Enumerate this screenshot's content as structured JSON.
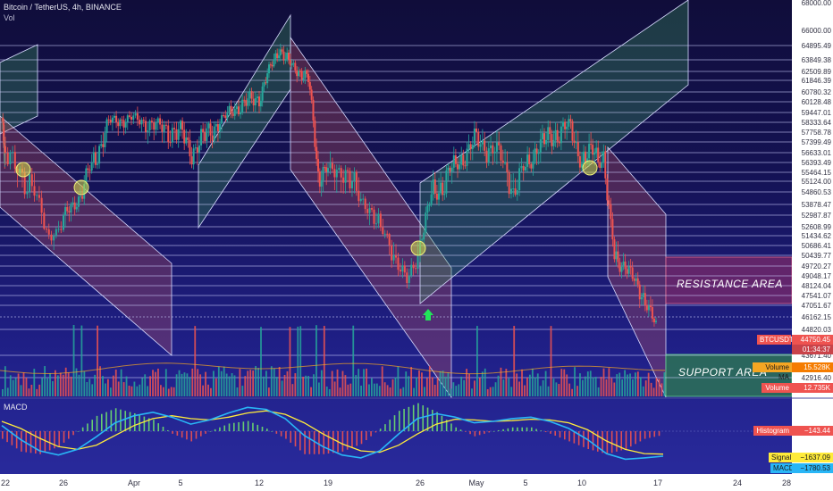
{
  "header": {
    "title": "Bitcoin / TetherUS, 4h, BINANCE",
    "vol_label": "Vol",
    "watermark_text": "Bitcoin / TetherUS"
  },
  "annotations": {
    "resistance_label": "RESISTANCE AREA",
    "support_label": "SUPPORT AREA"
  },
  "price_axis": {
    "labels": [
      "68000.00",
      "66000.00",
      "64895.49",
      "63849.38",
      "62509.89",
      "61846.39",
      "60780.32",
      "60128.48",
      "59447.01",
      "58333.64",
      "57758.78",
      "57399.49",
      "56633.01",
      "56393.49",
      "55464.15",
      "55124.00",
      "54860.53",
      "53878.47",
      "52987.87",
      "52608.99",
      "51434.62",
      "50686.41",
      "50439.77",
      "49720.27",
      "49048.17",
      "48124.04",
      "47541.07",
      "47051.67",
      "46162.15",
      "44820.03",
      "43671.40",
      "42916.40"
    ]
  },
  "tags": {
    "btc": {
      "name": "BTCUSDT",
      "value": "44750.45",
      "countdown": "01:34:37"
    },
    "volume_ma": {
      "name": "Volume MA",
      "value": "15.528K"
    },
    "volume": {
      "name": "Volume",
      "value": "12.735K"
    },
    "histogram": {
      "name": "Histogram",
      "value": "−143.44"
    },
    "signal": {
      "name": "Signal",
      "value": "−1637.09"
    },
    "macd": {
      "name": "MACD",
      "value": "−1780.53"
    }
  },
  "macd_panel": {
    "title": "MACD"
  },
  "time_axis": {
    "labels": [
      "22",
      "26",
      "Apr",
      "5",
      "12",
      "19",
      "26",
      "May",
      "5",
      "10",
      "17",
      "24",
      "28"
    ]
  },
  "colors": {
    "up": "#26a69a",
    "down": "#ef5350",
    "macd_line": "#29b6f6",
    "signal_line": "#ffeb3b",
    "channel_up_fill": "#3f9c5a",
    "channel_down_fill": "#c2545e",
    "resistance_fill": "#7b2a6a",
    "support_fill": "#2e7d4f",
    "level_line": "#cfd2ff"
  },
  "chart_data": {
    "type": "candlestick",
    "symbol": "BTCUSDT",
    "timeframe": "4h",
    "exchange": "BINANCE",
    "price_range": [
      42000,
      68500
    ],
    "x_ticks": [
      "22",
      "26",
      "Apr",
      "5",
      "12",
      "19",
      "26",
      "May",
      "5",
      "10",
      "17",
      "24",
      "28"
    ],
    "close_path": [
      {
        "t": "Mar 20",
        "price": 58300
      },
      {
        "t": "Mar 22",
        "price": 56500
      },
      {
        "t": "Mar 24",
        "price": 54800
      },
      {
        "t": "Mar 25",
        "price": 51500
      },
      {
        "t": "Mar 27",
        "price": 54000
      },
      {
        "t": "Mar 28",
        "price": 55200
      },
      {
        "t": "Mar 30",
        "price": 58400
      },
      {
        "t": "Apr 1",
        "price": 58800
      },
      {
        "t": "Apr 3",
        "price": 58100
      },
      {
        "t": "Apr 5",
        "price": 57800
      },
      {
        "t": "Apr 6",
        "price": 56800
      },
      {
        "t": "Apr 8",
        "price": 58100
      },
      {
        "t": "Apr 10",
        "price": 59800
      },
      {
        "t": "Apr 12",
        "price": 60400
      },
      {
        "t": "Apr 13",
        "price": 62600
      },
      {
        "t": "Apr 14",
        "price": 64800
      },
      {
        "t": "Apr 15",
        "price": 63500
      },
      {
        "t": "Apr 17",
        "price": 61800
      },
      {
        "t": "Apr 18",
        "price": 55500
      },
      {
        "t": "Apr 20",
        "price": 55800
      },
      {
        "t": "Apr 22",
        "price": 53800
      },
      {
        "t": "Apr 24",
        "price": 50500
      },
      {
        "t": "Apr 25",
        "price": 48500
      },
      {
        "t": "Apr 26",
        "price": 51000
      },
      {
        "t": "Apr 27",
        "price": 54500
      },
      {
        "t": "Apr 28",
        "price": 55100
      },
      {
        "t": "Apr 30",
        "price": 56700
      },
      {
        "t": "May 1",
        "price": 57400
      },
      {
        "t": "May 3",
        "price": 56600
      },
      {
        "t": "May 4",
        "price": 54800
      },
      {
        "t": "May 6",
        "price": 57000
      },
      {
        "t": "May 8",
        "price": 57900
      },
      {
        "t": "May 9",
        "price": 58100
      },
      {
        "t": "May 10",
        "price": 56300
      },
      {
        "t": "May 11",
        "price": 56800
      },
      {
        "t": "May 12",
        "price": 56500
      },
      {
        "t": "May 13",
        "price": 50200
      },
      {
        "t": "May 14",
        "price": 49800
      },
      {
        "t": "May 15",
        "price": 48300
      },
      {
        "t": "May 16",
        "price": 47200
      },
      {
        "t": "May 17",
        "price": 44750
      }
    ],
    "levels": [
      64895.49,
      63849.38,
      62509.89,
      61846.39,
      60780.32,
      60128.48,
      59447.01,
      58333.64,
      57758.78,
      57399.49,
      56633.01,
      56393.49,
      55464.15,
      55124.0,
      54860.53,
      53878.47,
      52987.87,
      52608.99,
      51434.62,
      50686.41,
      50439.77,
      49720.27,
      49048.17,
      48124.04,
      47541.07,
      47051.67,
      46162.15,
      44820.03,
      43671.4,
      42916.4
    ],
    "last_price": 44750.45,
    "volume": {
      "last": "12.735K",
      "ma": "15.528K"
    },
    "macd": {
      "histogram": -143.44,
      "signal": -1637.09,
      "macd": -1780.53
    },
    "macd_series": {
      "macd": [
        400,
        -600,
        -1400,
        -1700,
        -1300,
        -400,
        600,
        1100,
        1350,
        1000,
        500,
        800,
        1300,
        1700,
        1550,
        900,
        -300,
        -1100,
        -1700,
        -1900,
        -1400,
        -200,
        900,
        1250,
        1000,
        600,
        700,
        900,
        1000,
        700,
        200,
        -600,
        -1600,
        -2000,
        -1900,
        -1780
      ],
      "signal": [
        700,
        200,
        -500,
        -1100,
        -1300,
        -1000,
        -300,
        400,
        900,
        1100,
        900,
        800,
        1000,
        1300,
        1450,
        1200,
        600,
        -200,
        -900,
        -1400,
        -1500,
        -1000,
        -200,
        500,
        850,
        800,
        700,
        750,
        850,
        800,
        600,
        100,
        -700,
        -1300,
        -1600,
        -1637
      ]
    }
  }
}
